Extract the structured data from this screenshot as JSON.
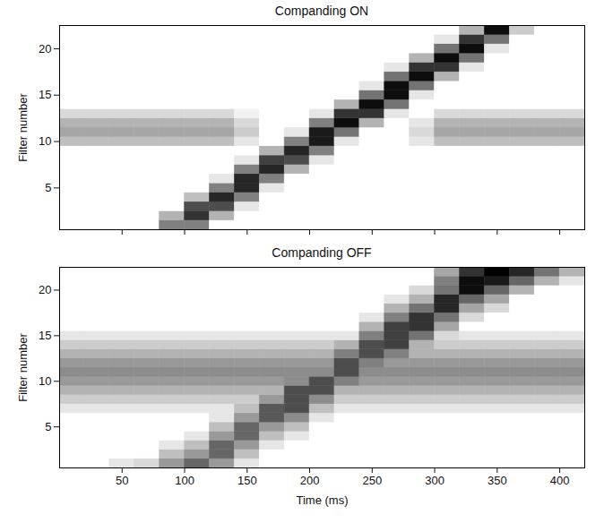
{
  "chart_data": [
    {
      "type": "heatmap",
      "title": "Companding ON",
      "ylabel": "Filter number",
      "tick_labels": "y",
      "xlim": [
        0,
        420
      ],
      "xticks": [
        50,
        100,
        150,
        200,
        250,
        300,
        350,
        400
      ],
      "ylim": [
        0.5,
        22.5
      ],
      "yticks": [
        5,
        10,
        15,
        20
      ],
      "x_edges": [
        0,
        20,
        40,
        60,
        80,
        100,
        120,
        140,
        160,
        180,
        200,
        220,
        240,
        260,
        280,
        300,
        320,
        340,
        360,
        380,
        400,
        420
      ],
      "y_edges": [
        0.5,
        1.5,
        2.5,
        3.5,
        4.5,
        5.5,
        6.5,
        7.5,
        8.5,
        9.5,
        10.5,
        11.5,
        12.5,
        13.5,
        14.5,
        15.5,
        16.5,
        17.5,
        18.5,
        19.5,
        20.5,
        21.5,
        22.5
      ],
      "cells": [
        [
          0,
          0,
          0,
          0,
          0.5,
          0.5,
          0,
          0,
          0,
          0,
          0,
          0,
          0,
          0,
          0,
          0,
          0,
          0,
          0,
          0,
          0
        ],
        [
          0,
          0,
          0,
          0,
          0.3,
          0.8,
          0.3,
          0,
          0,
          0,
          0,
          0,
          0,
          0,
          0,
          0,
          0,
          0,
          0,
          0,
          0
        ],
        [
          0,
          0,
          0,
          0,
          0,
          0.7,
          0.7,
          0.1,
          0,
          0,
          0,
          0,
          0,
          0,
          0,
          0,
          0,
          0,
          0,
          0,
          0
        ],
        [
          0,
          0,
          0,
          0,
          0,
          0.25,
          0.85,
          0.5,
          0,
          0,
          0,
          0,
          0,
          0,
          0,
          0,
          0,
          0,
          0,
          0,
          0
        ],
        [
          0,
          0,
          0,
          0,
          0,
          0,
          0.5,
          0.85,
          0.1,
          0,
          0,
          0,
          0,
          0,
          0,
          0,
          0,
          0,
          0,
          0,
          0
        ],
        [
          0,
          0,
          0,
          0,
          0,
          0,
          0.1,
          0.85,
          0.5,
          0,
          0,
          0,
          0,
          0,
          0,
          0,
          0,
          0,
          0,
          0,
          0
        ],
        [
          0,
          0,
          0,
          0,
          0,
          0,
          0,
          0.5,
          0.85,
          0.3,
          0,
          0,
          0,
          0,
          0,
          0,
          0,
          0,
          0,
          0,
          0
        ],
        [
          0,
          0,
          0,
          0,
          0,
          0,
          0,
          0.1,
          0.75,
          0.7,
          0.1,
          0,
          0,
          0,
          0,
          0,
          0,
          0,
          0,
          0,
          0
        ],
        [
          0,
          0,
          0,
          0,
          0,
          0,
          0,
          0,
          0.3,
          0.85,
          0.5,
          0,
          0,
          0,
          0,
          0,
          0,
          0,
          0,
          0,
          0
        ],
        [
          0.25,
          0.25,
          0.25,
          0.25,
          0.25,
          0.25,
          0.25,
          0.1,
          0,
          0.5,
          0.9,
          0.1,
          0,
          0,
          0.1,
          0.25,
          0.25,
          0.25,
          0.25,
          0.25,
          0.25
        ],
        [
          0.35,
          0.35,
          0.35,
          0.35,
          0.35,
          0.35,
          0.35,
          0.2,
          0,
          0.1,
          0.9,
          0.55,
          0,
          0,
          0.15,
          0.35,
          0.35,
          0.35,
          0.35,
          0.35,
          0.35
        ],
        [
          0.3,
          0.3,
          0.3,
          0.3,
          0.3,
          0.3,
          0.3,
          0.15,
          0,
          0,
          0.5,
          0.95,
          0.3,
          0,
          0.1,
          0.3,
          0.3,
          0.3,
          0.3,
          0.3,
          0.3
        ],
        [
          0.15,
          0.15,
          0.15,
          0.15,
          0.15,
          0.15,
          0.15,
          0.05,
          0,
          0,
          0.1,
          0.8,
          0.8,
          0.1,
          0,
          0.15,
          0.15,
          0.15,
          0.15,
          0.15,
          0.15
        ],
        [
          0,
          0,
          0,
          0,
          0,
          0,
          0,
          0,
          0,
          0,
          0,
          0.3,
          0.95,
          0.55,
          0,
          0,
          0,
          0,
          0,
          0,
          0
        ],
        [
          0,
          0,
          0,
          0,
          0,
          0,
          0,
          0,
          0,
          0,
          0,
          0,
          0.55,
          0.95,
          0.1,
          0,
          0,
          0,
          0,
          0,
          0
        ],
        [
          0,
          0,
          0,
          0,
          0,
          0,
          0,
          0,
          0,
          0,
          0,
          0,
          0.1,
          0.95,
          0.55,
          0,
          0,
          0,
          0,
          0,
          0
        ],
        [
          0,
          0,
          0,
          0,
          0,
          0,
          0,
          0,
          0,
          0,
          0,
          0,
          0,
          0.55,
          0.95,
          0.3,
          0,
          0,
          0,
          0,
          0
        ],
        [
          0,
          0,
          0,
          0,
          0,
          0,
          0,
          0,
          0,
          0,
          0,
          0,
          0,
          0.1,
          0.8,
          0.8,
          0.1,
          0,
          0,
          0,
          0
        ],
        [
          0,
          0,
          0,
          0,
          0,
          0,
          0,
          0,
          0,
          0,
          0,
          0,
          0,
          0,
          0.3,
          0.95,
          0.55,
          0,
          0,
          0,
          0
        ],
        [
          0,
          0,
          0,
          0,
          0,
          0,
          0,
          0,
          0,
          0,
          0,
          0,
          0,
          0,
          0,
          0.55,
          0.95,
          0.1,
          0,
          0,
          0
        ],
        [
          0,
          0,
          0,
          0,
          0,
          0,
          0,
          0,
          0,
          0,
          0,
          0,
          0,
          0,
          0,
          0.1,
          0.8,
          0.55,
          0,
          0,
          0
        ],
        [
          0,
          0,
          0,
          0,
          0,
          0,
          0,
          0,
          0,
          0,
          0,
          0,
          0,
          0,
          0,
          0,
          0.3,
          0.95,
          0.2,
          0,
          0
        ]
      ]
    },
    {
      "type": "heatmap",
      "title": "Companding OFF",
      "xlabel": "Time (ms)",
      "ylabel": "Filter number",
      "xlim": [
        0,
        420
      ],
      "xticks": [
        50,
        100,
        150,
        200,
        250,
        300,
        350,
        400
      ],
      "ylim": [
        0.5,
        22.5
      ],
      "yticks": [
        5,
        10,
        15,
        20
      ],
      "x_edges": [
        0,
        20,
        40,
        60,
        80,
        100,
        120,
        140,
        160,
        180,
        200,
        220,
        240,
        260,
        280,
        300,
        320,
        340,
        360,
        380,
        400,
        420
      ],
      "y_edges": [
        0.5,
        1.5,
        2.5,
        3.5,
        4.5,
        5.5,
        6.5,
        7.5,
        8.5,
        9.5,
        10.5,
        11.5,
        12.5,
        13.5,
        14.5,
        15.5,
        16.5,
        17.5,
        18.5,
        19.5,
        20.5,
        21.5,
        22.5
      ],
      "cells": [
        [
          0,
          0,
          0.1,
          0.15,
          0.4,
          0.6,
          0.4,
          0.1,
          0,
          0,
          0,
          0,
          0,
          0,
          0,
          0,
          0,
          0,
          0,
          0,
          0
        ],
        [
          0,
          0,
          0,
          0,
          0.25,
          0.4,
          0.6,
          0.25,
          0,
          0,
          0,
          0,
          0,
          0,
          0,
          0,
          0,
          0,
          0,
          0,
          0
        ],
        [
          0,
          0,
          0,
          0,
          0.1,
          0.25,
          0.6,
          0.4,
          0.1,
          0,
          0,
          0,
          0,
          0,
          0,
          0,
          0,
          0,
          0,
          0,
          0
        ],
        [
          0,
          0,
          0,
          0,
          0,
          0.1,
          0.4,
          0.6,
          0.25,
          0.1,
          0,
          0,
          0,
          0,
          0,
          0,
          0,
          0,
          0,
          0,
          0
        ],
        [
          0,
          0,
          0,
          0,
          0,
          0,
          0.25,
          0.6,
          0.4,
          0.25,
          0,
          0,
          0,
          0,
          0,
          0,
          0,
          0,
          0,
          0,
          0
        ],
        [
          0,
          0,
          0,
          0,
          0,
          0,
          0.1,
          0.4,
          0.65,
          0.45,
          0.1,
          0,
          0,
          0,
          0,
          0,
          0,
          0,
          0,
          0,
          0
        ],
        [
          0.1,
          0.1,
          0.1,
          0.1,
          0.1,
          0.1,
          0.1,
          0.25,
          0.65,
          0.7,
          0.25,
          0.1,
          0.1,
          0.1,
          0.1,
          0.1,
          0.1,
          0.1,
          0.1,
          0.1,
          0.1
        ],
        [
          0.2,
          0.2,
          0.2,
          0.2,
          0.2,
          0.2,
          0.2,
          0.2,
          0.4,
          0.7,
          0.45,
          0.2,
          0.2,
          0.2,
          0.2,
          0.2,
          0.2,
          0.2,
          0.2,
          0.2,
          0.2
        ],
        [
          0.3,
          0.3,
          0.3,
          0.3,
          0.3,
          0.3,
          0.3,
          0.3,
          0.3,
          0.7,
          0.7,
          0.3,
          0.3,
          0.3,
          0.3,
          0.3,
          0.3,
          0.3,
          0.3,
          0.3,
          0.3
        ],
        [
          0.4,
          0.4,
          0.4,
          0.4,
          0.4,
          0.4,
          0.4,
          0.4,
          0.4,
          0.45,
          0.7,
          0.5,
          0.4,
          0.4,
          0.4,
          0.4,
          0.4,
          0.4,
          0.4,
          0.4,
          0.4
        ],
        [
          0.45,
          0.45,
          0.45,
          0.45,
          0.45,
          0.45,
          0.45,
          0.45,
          0.45,
          0.45,
          0.45,
          0.7,
          0.45,
          0.45,
          0.45,
          0.45,
          0.45,
          0.45,
          0.45,
          0.45,
          0.45
        ],
        [
          0.4,
          0.4,
          0.4,
          0.4,
          0.4,
          0.4,
          0.4,
          0.4,
          0.4,
          0.4,
          0.4,
          0.7,
          0.5,
          0.4,
          0.4,
          0.4,
          0.4,
          0.4,
          0.4,
          0.4,
          0.4
        ],
        [
          0.3,
          0.3,
          0.3,
          0.3,
          0.3,
          0.3,
          0.3,
          0.3,
          0.3,
          0.3,
          0.3,
          0.5,
          0.7,
          0.5,
          0.3,
          0.3,
          0.3,
          0.3,
          0.3,
          0.3,
          0.3
        ],
        [
          0.2,
          0.2,
          0.2,
          0.2,
          0.2,
          0.2,
          0.2,
          0.2,
          0.2,
          0.2,
          0.2,
          0.3,
          0.7,
          0.75,
          0.3,
          0.2,
          0.2,
          0.2,
          0.2,
          0.2,
          0.2
        ],
        [
          0.1,
          0.1,
          0.1,
          0.1,
          0.1,
          0.1,
          0.1,
          0.1,
          0.1,
          0.1,
          0.1,
          0.1,
          0.5,
          0.75,
          0.55,
          0.15,
          0.1,
          0.1,
          0.1,
          0.1,
          0.1
        ],
        [
          0,
          0,
          0,
          0,
          0,
          0,
          0,
          0,
          0,
          0,
          0,
          0,
          0.3,
          0.75,
          0.8,
          0.35,
          0,
          0,
          0,
          0,
          0
        ],
        [
          0,
          0,
          0,
          0,
          0,
          0,
          0,
          0,
          0,
          0,
          0,
          0,
          0.1,
          0.5,
          0.8,
          0.55,
          0.15,
          0,
          0,
          0,
          0
        ],
        [
          0,
          0,
          0,
          0,
          0,
          0,
          0,
          0,
          0,
          0,
          0,
          0,
          0,
          0.3,
          0.55,
          0.85,
          0.35,
          0.15,
          0,
          0,
          0
        ],
        [
          0,
          0,
          0,
          0,
          0,
          0,
          0,
          0,
          0,
          0,
          0,
          0,
          0,
          0.1,
          0.3,
          0.85,
          0.6,
          0.35,
          0,
          0,
          0
        ],
        [
          0,
          0,
          0,
          0,
          0,
          0,
          0,
          0,
          0,
          0,
          0,
          0,
          0,
          0,
          0.15,
          0.55,
          0.95,
          0.6,
          0.3,
          0,
          0
        ],
        [
          0,
          0,
          0,
          0,
          0,
          0,
          0,
          0,
          0,
          0,
          0,
          0,
          0,
          0,
          0,
          0.5,
          0.95,
          0.9,
          0.6,
          0.3,
          0.1
        ],
        [
          0,
          0,
          0,
          0,
          0,
          0,
          0,
          0,
          0,
          0,
          0,
          0,
          0,
          0,
          0,
          0.35,
          0.8,
          1,
          0.85,
          0.55,
          0.3
        ]
      ]
    }
  ]
}
